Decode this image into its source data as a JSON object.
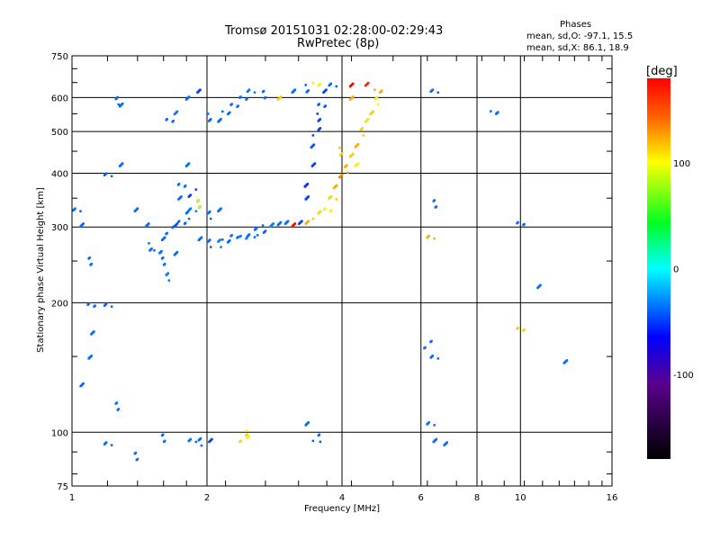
{
  "title": "Tromsø 20151031 02:28:00-02:29:43",
  "subtitle": "RwPretec (8p)",
  "stats": {
    "heading": "Phases",
    "o_line": "mean, sd,O: -97.1, 15.5",
    "x_line": "mean, sd,X:  86.1, 18.9"
  },
  "chart_data": {
    "type": "scatter",
    "xlabel": "Frequency [MHz]",
    "ylabel": "Stationary phase Virtual Height [km]",
    "xscale": "log",
    "yscale": "log",
    "xlim": [
      1,
      16
    ],
    "ylim": [
      75,
      750
    ],
    "xticks": [
      "1",
      "2",
      "4",
      "6",
      "8",
      "10",
      "16"
    ],
    "xtick_values": [
      1,
      2,
      4,
      6,
      8,
      10,
      16
    ],
    "yticks": [
      "75",
      "100",
      "200",
      "300",
      "400",
      "500",
      "600",
      "750"
    ],
    "ytick_values": [
      75,
      100,
      200,
      300,
      400,
      500,
      600,
      750
    ],
    "colorbar": {
      "label": "[deg]",
      "ticks": [
        "100",
        "0",
        "-100"
      ],
      "tick_values": [
        100,
        0,
        -100
      ],
      "range": [
        -180,
        180
      ]
    },
    "grid": true,
    "points_freq_height_phase": [
      [
        1.55,
        265,
        -100
      ],
      [
        1.6,
        280,
        -100
      ],
      [
        1.65,
        295,
        -100
      ],
      [
        1.7,
        300,
        -105
      ],
      [
        1.75,
        310,
        -100
      ],
      [
        1.8,
        320,
        -100
      ],
      [
        1.85,
        330,
        -95
      ],
      [
        1.9,
        340,
        -100
      ],
      [
        1.95,
        280,
        -100
      ],
      [
        2.0,
        275,
        -100
      ],
      [
        2.1,
        275,
        -95
      ],
      [
        2.2,
        278,
        -100
      ],
      [
        2.3,
        282,
        -100
      ],
      [
        2.4,
        285,
        -95
      ],
      [
        2.5,
        290,
        -100
      ],
      [
        2.6,
        293,
        -100
      ],
      [
        2.7,
        297,
        -100
      ],
      [
        2.8,
        300,
        -95
      ],
      [
        2.9,
        305,
        -100
      ],
      [
        3.0,
        310,
        -100
      ],
      [
        3.1,
        300,
        150
      ],
      [
        3.2,
        310,
        -110
      ],
      [
        3.3,
        350,
        -110
      ],
      [
        3.35,
        380,
        -115
      ],
      [
        3.4,
        420,
        -110
      ],
      [
        3.45,
        460,
        -105
      ],
      [
        3.5,
        500,
        -110
      ],
      [
        3.55,
        540,
        -110
      ],
      [
        3.6,
        580,
        -105
      ],
      [
        3.65,
        620,
        -110
      ],
      [
        1.6,
        250,
        -100
      ],
      [
        1.62,
        230,
        -95
      ],
      [
        1.7,
        260,
        -100
      ],
      [
        1.72,
        350,
        -100
      ],
      [
        1.75,
        380,
        -100
      ],
      [
        1.8,
        420,
        -100
      ],
      [
        1.85,
        360,
        -110
      ],
      [
        1.9,
        340,
        60
      ],
      [
        2.0,
        320,
        -100
      ],
      [
        2.1,
        330,
        -100
      ],
      [
        1.5,
        270,
        -100
      ],
      [
        1.45,
        300,
        -100
      ],
      [
        1.4,
        330,
        -100
      ],
      [
        3.3,
        310,
        100
      ],
      [
        3.5,
        320,
        90
      ],
      [
        3.7,
        330,
        80
      ],
      [
        3.8,
        350,
        90
      ],
      [
        3.9,
        370,
        100
      ],
      [
        4.0,
        390,
        110
      ],
      [
        4.1,
        410,
        100
      ],
      [
        4.2,
        440,
        90
      ],
      [
        4.3,
        470,
        100
      ],
      [
        4.4,
        500,
        90
      ],
      [
        4.5,
        530,
        85
      ],
      [
        4.6,
        560,
        90
      ],
      [
        4.7,
        590,
        80
      ],
      [
        4.8,
        620,
        100
      ],
      [
        4.5,
        640,
        140
      ],
      [
        4.2,
        600,
        100
      ],
      [
        4.0,
        450,
        90
      ],
      [
        4.3,
        420,
        80
      ],
      [
        1.65,
        530,
        -100
      ],
      [
        1.7,
        560,
        -95
      ],
      [
        1.8,
        600,
        -100
      ],
      [
        1.9,
        620,
        -110
      ],
      [
        2.0,
        540,
        -100
      ],
      [
        2.1,
        530,
        -100
      ],
      [
        2.2,
        560,
        -100
      ],
      [
        2.3,
        580,
        -100
      ],
      [
        2.4,
        600,
        -100
      ],
      [
        2.5,
        620,
        -95
      ],
      [
        2.7,
        610,
        -100
      ],
      [
        2.9,
        600,
        90
      ],
      [
        3.1,
        620,
        -100
      ],
      [
        3.3,
        630,
        -100
      ],
      [
        3.5,
        640,
        80
      ],
      [
        3.8,
        650,
        -100
      ],
      [
        4.2,
        650,
        150
      ],
      [
        1.02,
        330,
        -100
      ],
      [
        1.05,
        300,
        -100
      ],
      [
        1.08,
        250,
        -100
      ],
      [
        1.1,
        200,
        -100
      ],
      [
        1.12,
        170,
        -100
      ],
      [
        1.08,
        150,
        -100
      ],
      [
        1.05,
        130,
        -100
      ],
      [
        1.2,
        200,
        -100
      ],
      [
        1.25,
        590,
        -100
      ],
      [
        1.3,
        570,
        -100
      ],
      [
        1.2,
        400,
        -100
      ],
      [
        1.3,
        420,
        -100
      ],
      [
        1.6,
        97,
        -100
      ],
      [
        1.85,
        96,
        -100
      ],
      [
        1.95,
        95,
        -100
      ],
      [
        2.05,
        96,
        -110
      ],
      [
        2.4,
        97,
        90
      ],
      [
        2.45,
        99,
        80
      ],
      [
        3.3,
        105,
        -100
      ],
      [
        3.5,
        97,
        -100
      ],
      [
        6.5,
        96,
        -100
      ],
      [
        6.8,
        93,
        -100
      ],
      [
        6.3,
        105,
        -100
      ],
      [
        6.2,
        160,
        -100
      ],
      [
        6.4,
        150,
        -100
      ],
      [
        8.7,
        550,
        -100
      ],
      [
        10,
        305,
        -100
      ],
      [
        10.9,
        220,
        -100
      ],
      [
        10,
        175,
        90
      ],
      [
        12.4,
        145,
        -100
      ],
      [
        6.4,
        620,
        -100
      ],
      [
        6.3,
        285,
        100
      ],
      [
        6.5,
        340,
        -100
      ],
      [
        1.25,
        115,
        -100
      ],
      [
        1.2,
        93,
        -100
      ],
      [
        1.4,
        88,
        -100
      ]
    ]
  }
}
